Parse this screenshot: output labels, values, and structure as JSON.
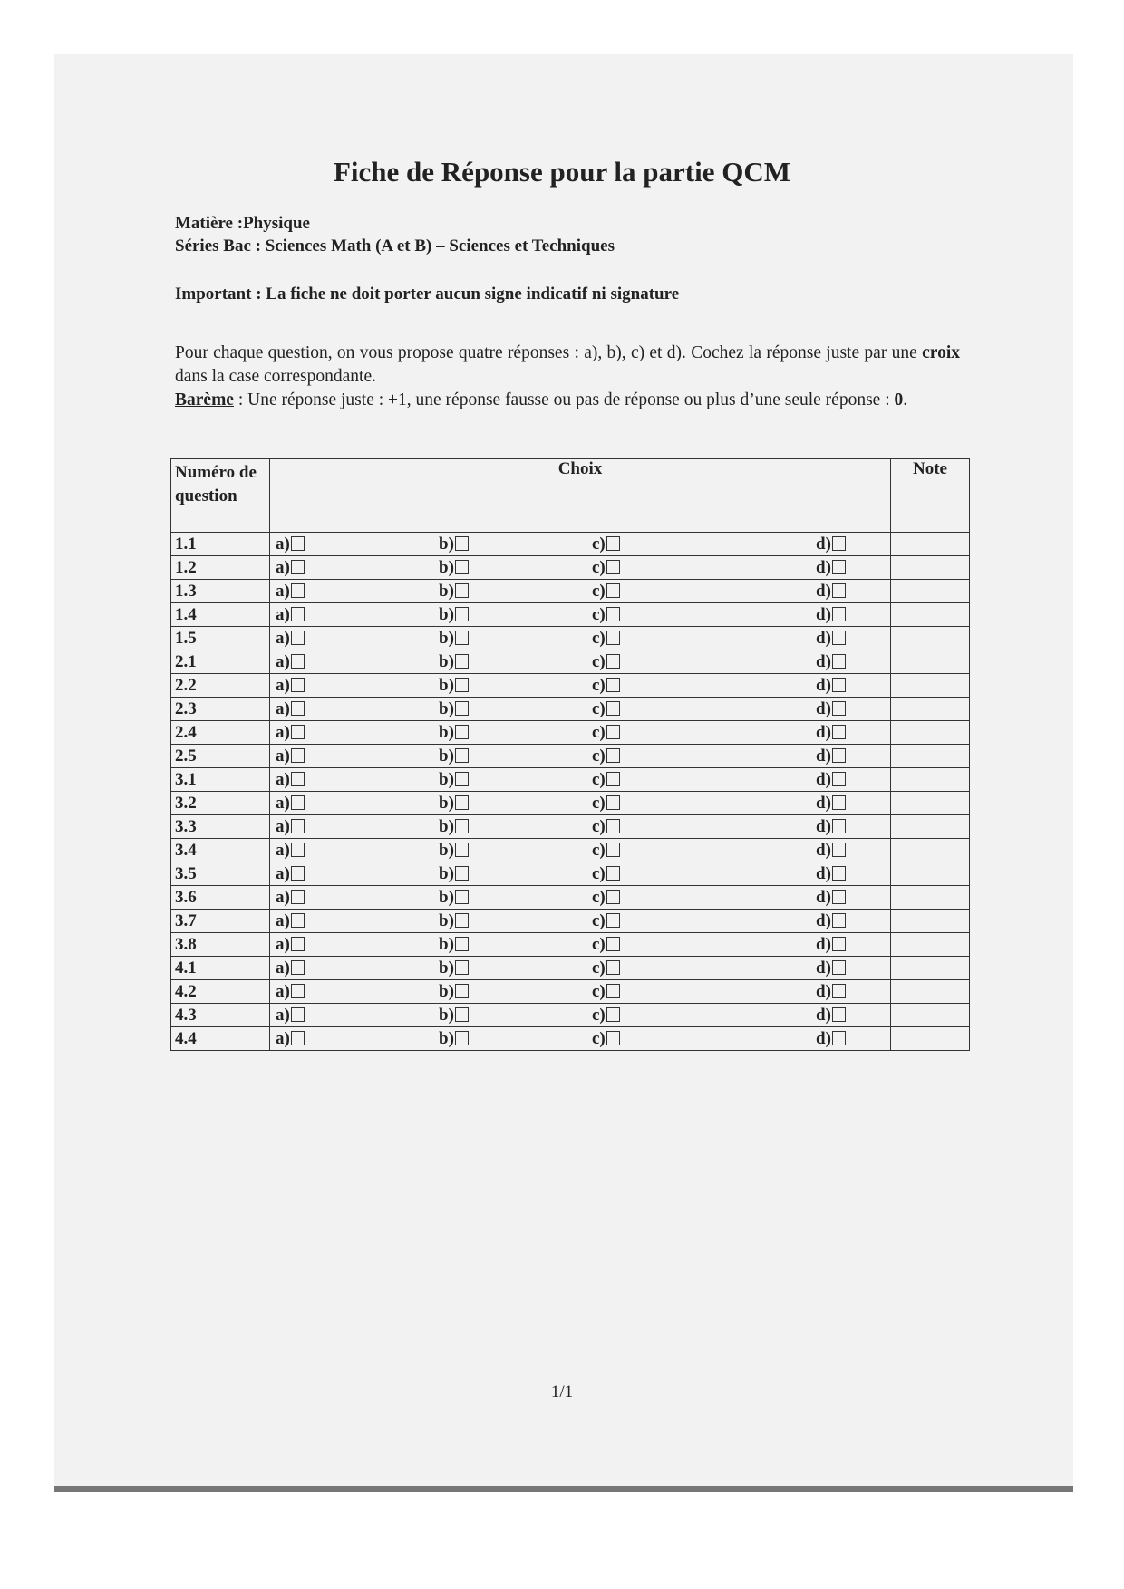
{
  "title": "Fiche de Réponse pour la partie QCM",
  "matiere": "Matière :Physique",
  "series": "Séries Bac : Sciences Math (A et B) –  Sciences et Techniques",
  "important": "Important :  La fiche ne doit porter aucun signe indicatif ni signature",
  "instructions": {
    "p1a": "Pour chaque question, on vous propose quatre réponses : a), b), c) et d). Cochez la réponse juste par une ",
    "p1b": "croix",
    "p1c": " dans la case correspondante.",
    "bareme_label": "Barème",
    "bareme_a": " : Une réponse juste : +1, une réponse fausse ou pas de réponse ou plus d’une seule réponse : ",
    "bareme_b": "0",
    "bareme_c": "."
  },
  "table": {
    "headers": {
      "numero": "Numéro de question",
      "choix": "Choix",
      "note": "Note"
    },
    "options": [
      "a)",
      "b)",
      "c)",
      "d)"
    ],
    "questions": [
      "1.1",
      "1.2",
      "1.3",
      "1.4",
      "1.5",
      "2.1",
      "2.2",
      "2.3",
      "2.4",
      "2.5",
      "3.1",
      "3.2",
      "3.3",
      "3.4",
      "3.5",
      "3.6",
      "3.7",
      "3.8",
      "4.1",
      "4.2",
      "4.3",
      "4.4"
    ]
  },
  "footer": "1/1"
}
